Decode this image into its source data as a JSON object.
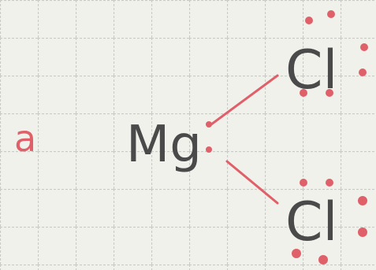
{
  "label": "a",
  "atoms": [
    {
      "symbol": "Mg"
    },
    {
      "symbol": "Cl"
    },
    {
      "symbol": "Cl"
    }
  ]
}
